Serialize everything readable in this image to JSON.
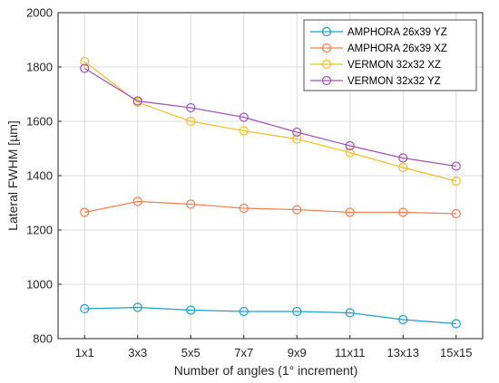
{
  "chart_data": {
    "type": "line",
    "xlabel": "Number of angles (1° increment)",
    "ylabel": "Lateral FWHM [µm]",
    "categories": [
      "1x1",
      "3x3",
      "5x5",
      "7x7",
      "9x9",
      "11x11",
      "13x13",
      "15x15"
    ],
    "ylim": [
      800,
      2000
    ],
    "yticks": [
      800,
      1000,
      1200,
      1400,
      1600,
      1800,
      2000
    ],
    "grid": true,
    "legend_position": "top-right",
    "marker": "circle",
    "series": [
      {
        "name": "AMPHORA 26x39 YZ",
        "color": "#1f9fcf",
        "values": [
          910,
          915,
          905,
          900,
          900,
          895,
          870,
          855
        ]
      },
      {
        "name": "AMPHORA 26x39 XZ",
        "color": "#f07f50",
        "values": [
          1265,
          1305,
          1295,
          1280,
          1275,
          1265,
          1265,
          1260
        ]
      },
      {
        "name": "VERMON 32x32 XZ",
        "color": "#f5bc2e",
        "values": [
          1820,
          1670,
          1600,
          1565,
          1535,
          1485,
          1430,
          1380
        ]
      },
      {
        "name": "VERMON 32x32 YZ",
        "color": "#a155b9",
        "values": [
          1795,
          1675,
          1650,
          1615,
          1560,
          1510,
          1465,
          1435
        ]
      }
    ]
  }
}
